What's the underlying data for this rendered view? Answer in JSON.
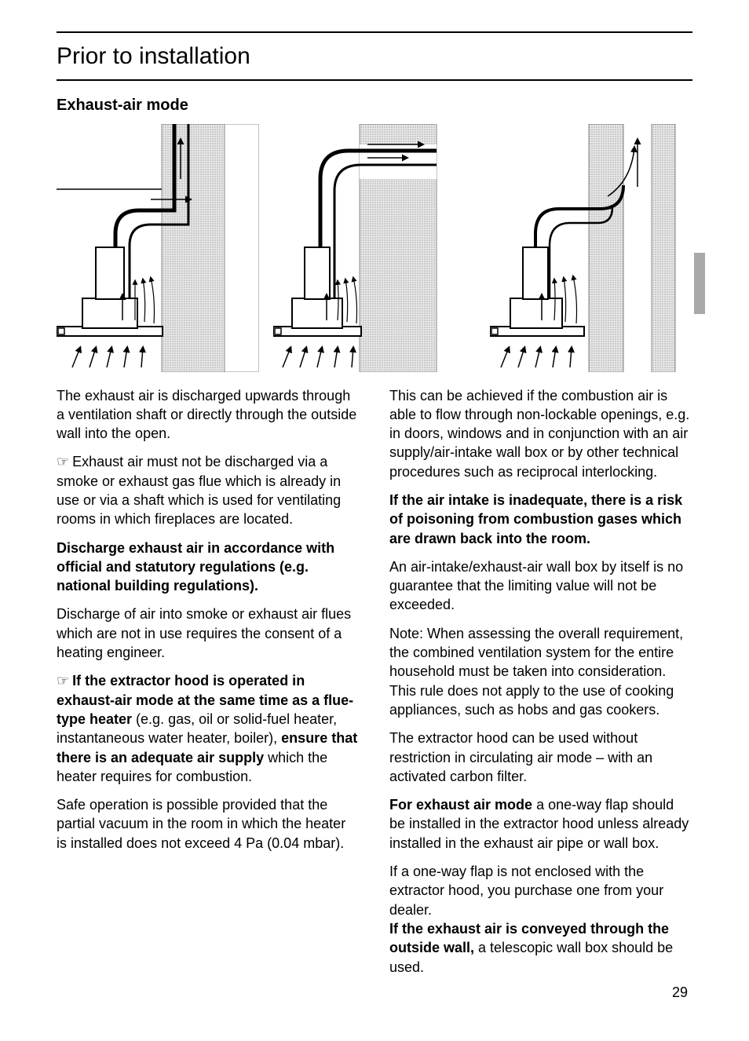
{
  "page": {
    "title": "Prior to installation",
    "subtitle": "Exhaust-air mode",
    "page_number": "29",
    "colors": {
      "text": "#000000",
      "background": "#ffffff",
      "wall_fill": "#d4d4d4",
      "wall_stroke": "#707070",
      "line": "#000000",
      "side_tab": "#a9a9a9"
    }
  },
  "left_column": [
    {
      "type": "p",
      "parts": [
        {
          "text": "The exhaust air is discharged upwards through a ventilation shaft or directly through the outside wall into the open."
        }
      ]
    },
    {
      "type": "p",
      "hand": true,
      "parts": [
        {
          "text": "Exhaust air must not be discharged via a smoke or exhaust gas flue which is already in use or via a shaft which is used for ventilating rooms in which fireplaces are located."
        }
      ]
    },
    {
      "type": "p",
      "parts": [
        {
          "text": "Discharge exhaust air in accordance with official and statutory regulations (e.g. national building regulations).",
          "bold": true
        }
      ]
    },
    {
      "type": "p",
      "parts": [
        {
          "text": "Discharge of air into smoke or exhaust air flues which are not in use requires the consent of a heating engineer."
        }
      ]
    },
    {
      "type": "p",
      "hand": true,
      "parts": [
        {
          "text": "If the extractor hood is operated in exhaust-air mode at the same time as a flue-type heater ",
          "bold": true
        },
        {
          "text": "(e.g. gas, oil or solid-fuel heater, instantaneous water heater, boiler), "
        },
        {
          "text": "ensure that there is an adequate air supply ",
          "bold": true
        },
        {
          "text": "which the heater requires for combustion."
        }
      ]
    },
    {
      "type": "p",
      "parts": [
        {
          "text": "Safe operation is possible provided that the partial vacuum in the room in which the heater is installed does not exceed 4 Pa (0.04 mbar)."
        }
      ]
    }
  ],
  "right_column": [
    {
      "type": "p",
      "parts": [
        {
          "text": "This can be achieved if the combustion air is able to flow through non-lockable openings, e.g. in doors, windows and in conjunction with an air supply/air-intake wall box or by other technical procedures such as reciprocal interlocking."
        }
      ]
    },
    {
      "type": "p",
      "parts": [
        {
          "text": "If the air intake is inadequate, there is a risk of poisoning from combustion gases which are drawn back into the room.",
          "bold": true
        }
      ]
    },
    {
      "type": "p",
      "parts": [
        {
          "text": "An air-intake/exhaust-air wall box by itself is no guarantee that the limiting value will not be exceeded."
        }
      ]
    },
    {
      "type": "p",
      "parts": [
        {
          "text": "Note: When assessing the overall requirement, the combined ventilation system for the entire household must be taken into consideration. This rule does not apply to the use of cooking appliances, such as hobs and gas cookers."
        }
      ]
    },
    {
      "type": "p",
      "parts": [
        {
          "text": "The extractor hood can be used without restriction in circulating air mode – with an activated carbon filter."
        }
      ]
    },
    {
      "type": "p",
      "parts": [
        {
          "text": "For exhaust air mode ",
          "bold": true
        },
        {
          "text": "a one-way flap should be installed in the extractor hood unless already installed in the exhaust air pipe or wall box."
        }
      ]
    },
    {
      "type": "p",
      "nomargin": true,
      "parts": [
        {
          "text": "If a one-way flap is not enclosed with the extractor hood, you purchase one from your dealer."
        }
      ]
    },
    {
      "type": "p",
      "parts": [
        {
          "text": "If the exhaust air is conveyed through the outside wall, ",
          "bold": true
        },
        {
          "text": "a telescopic wall box should be used."
        }
      ]
    }
  ]
}
